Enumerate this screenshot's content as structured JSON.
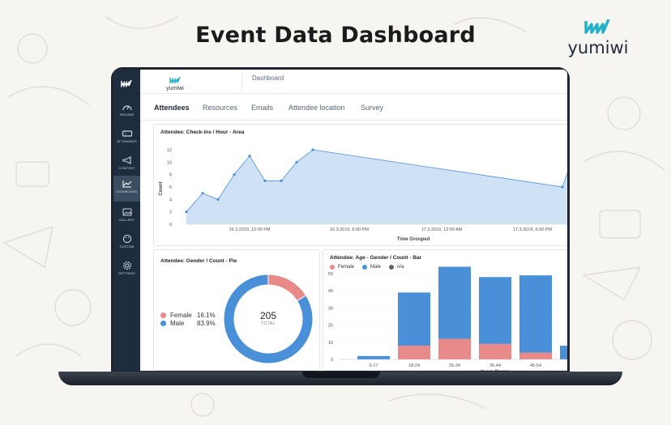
{
  "headline": "Event Data Dashboard",
  "brand": {
    "name": "yumiwi"
  },
  "colors": {
    "accent": "#1fb1c8",
    "sidebar": "#1e2d3d",
    "area": "#cfe2f5",
    "male": "#4a90d9",
    "female": "#e88a8a",
    "na": "#5f6770"
  },
  "sidebar": {
    "items": [
      {
        "label": "RESUME",
        "icon": "gauge-icon"
      },
      {
        "label": "ATTENDEES",
        "icon": "ticket-icon"
      },
      {
        "label": "CONTENT",
        "icon": "megaphone-icon"
      },
      {
        "label": "DASHBOARD",
        "icon": "trend-chart-icon",
        "active": true
      },
      {
        "label": "GALLERY",
        "icon": "image-icon"
      },
      {
        "label": "CUSTOM",
        "icon": "palette-icon"
      },
      {
        "label": "SETTINGS",
        "icon": "gear-icon"
      }
    ]
  },
  "header": {
    "logo_text": "yumiwi",
    "title": "Dashboard"
  },
  "tabs": [
    {
      "label": "Attendees",
      "active": true
    },
    {
      "label": "Resources"
    },
    {
      "label": "Emails"
    },
    {
      "label": "Attendee location"
    },
    {
      "label": "Survey"
    }
  ],
  "checkins": {
    "title": "Attendee: Check-ins / Hour - Area",
    "ylabel": "Count",
    "xlabel": "Time Grouped",
    "yticks": [
      "12",
      "10",
      "8",
      "6",
      "4",
      "2",
      "0"
    ],
    "xticks": [
      "16.3.2019, 12:00 PM",
      "16.3.2019, 6:00 PM",
      "17.3.2019, 12:00 AM",
      "17.3.2019, 6:00 PM"
    ]
  },
  "gender": {
    "title": "Attendee: Gender / Count - Pie",
    "total": "205",
    "total_label": "TOTAL",
    "legend": [
      {
        "label": "Female",
        "pct": "16.1%"
      },
      {
        "label": "Male",
        "pct": "83.9%"
      }
    ]
  },
  "agebar": {
    "title": "Attendee: Age - Gender / Count - Bar",
    "legend": [
      "Female",
      "Male",
      "n/a"
    ],
    "yticks": [
      "50",
      "40",
      "30",
      "20",
      "10",
      "0"
    ],
    "xlabel": "Years Range"
  },
  "chart_data": [
    {
      "type": "area",
      "title": "Attendee: Check-ins / Hour - Area",
      "xlabel": "Time Grouped",
      "ylabel": "Count",
      "ylim": [
        0,
        12
      ],
      "x_ticks": [
        "16.3.2019, 12:00 PM",
        "16.3.2019, 6:00 PM",
        "17.3.2019, 12:00 AM",
        "17.3.2019, 6:00 PM"
      ],
      "values": [
        2,
        5,
        4,
        8,
        11,
        7,
        7,
        10,
        12,
        6,
        9
      ]
    },
    {
      "type": "pie",
      "title": "Attendee: Gender / Count - Pie",
      "total": 205,
      "slices": [
        {
          "label": "Female",
          "value": 16.1
        },
        {
          "label": "Male",
          "value": 83.9
        }
      ]
    },
    {
      "type": "bar",
      "title": "Attendee: Age - Gender / Count - Bar",
      "xlabel": "Years Range",
      "ylim": [
        0,
        50
      ],
      "categories": [
        "0-17",
        "18-24",
        "25-34",
        "35-44",
        "45-54",
        ""
      ],
      "series": [
        {
          "name": "Female",
          "values": [
            0,
            8,
            12,
            9,
            4,
            0
          ]
        },
        {
          "name": "Male",
          "values": [
            2,
            31,
            42,
            39,
            45,
            8
          ]
        },
        {
          "name": "n/a",
          "values": [
            0,
            0,
            0,
            0,
            0,
            0
          ]
        }
      ]
    }
  ]
}
